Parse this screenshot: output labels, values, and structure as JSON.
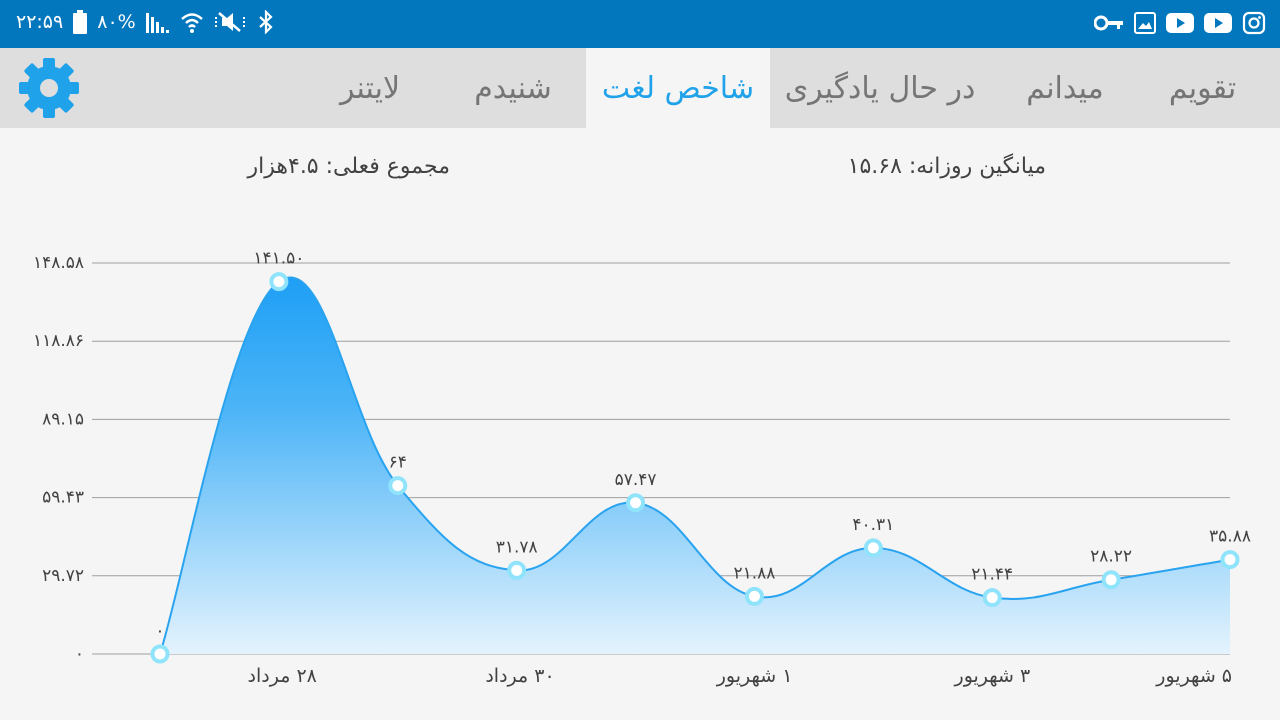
{
  "status_bar": {
    "time": "۲۲:۵۹",
    "battery": "۸۰%",
    "left_icons": [
      "battery-icon",
      "signal-icon",
      "wifi-icon",
      "mute-icon",
      "bluetooth-icon"
    ],
    "right_icons": [
      "vpn-key-icon",
      "gallery-icon",
      "youtube-icon",
      "youtube-icon",
      "instagram-icon"
    ]
  },
  "tabs": [
    {
      "label": "تقویم",
      "active": false
    },
    {
      "label": "میدانم",
      "active": false
    },
    {
      "label": "در حال یادگیری",
      "active": false
    },
    {
      "label": "شاخص لغت",
      "active": true
    },
    {
      "label": "شنیدم",
      "active": false
    },
    {
      "label": "لایتنر",
      "active": false
    }
  ],
  "settings_icon": "gear-icon",
  "stats": {
    "total": "مجموع فعلی: ۴.۵هزار",
    "daily_average": "میانگین روزانه: ۱۵.۶۸"
  },
  "colors": {
    "status_bar": "#0277bd",
    "accent": "#1fa2e9",
    "line": "#29a3ef",
    "marker_fill": "#ffffff",
    "marker_stroke": "#8fe3fb"
  },
  "chart_data": {
    "type": "area",
    "ylim": [
      0,
      148.58
    ],
    "yticks": [
      0,
      29.72,
      59.43,
      89.15,
      118.86,
      148.58
    ],
    "ytick_labels": [
      "۰",
      "۲۹.۷۲",
      "۵۹.۴۳",
      "۸۹.۱۵",
      "۱۱۸.۸۶",
      "۱۴۸.۵۸"
    ],
    "x_labels": [
      "۲۸ مرداد",
      "۳۰ مرداد",
      "۱ شهریور",
      "۳ شهریور",
      "۵ شهریور"
    ],
    "x_label_indices": [
      1,
      3,
      5,
      7,
      9
    ],
    "values": [
      0,
      141.5,
      64,
      31.78,
      57.47,
      21.88,
      40.31,
      21.44,
      28.22,
      35.88
    ],
    "value_labels": [
      "۰",
      "۱۴۱.۵۰",
      "۶۴",
      "۳۱.۷۸",
      "۵۷.۴۷",
      "۲۱.۸۸",
      "۴۰.۳۱",
      "۲۱.۴۴",
      "۲۸.۲۲",
      "۳۵.۸۸"
    ],
    "grid": true
  }
}
